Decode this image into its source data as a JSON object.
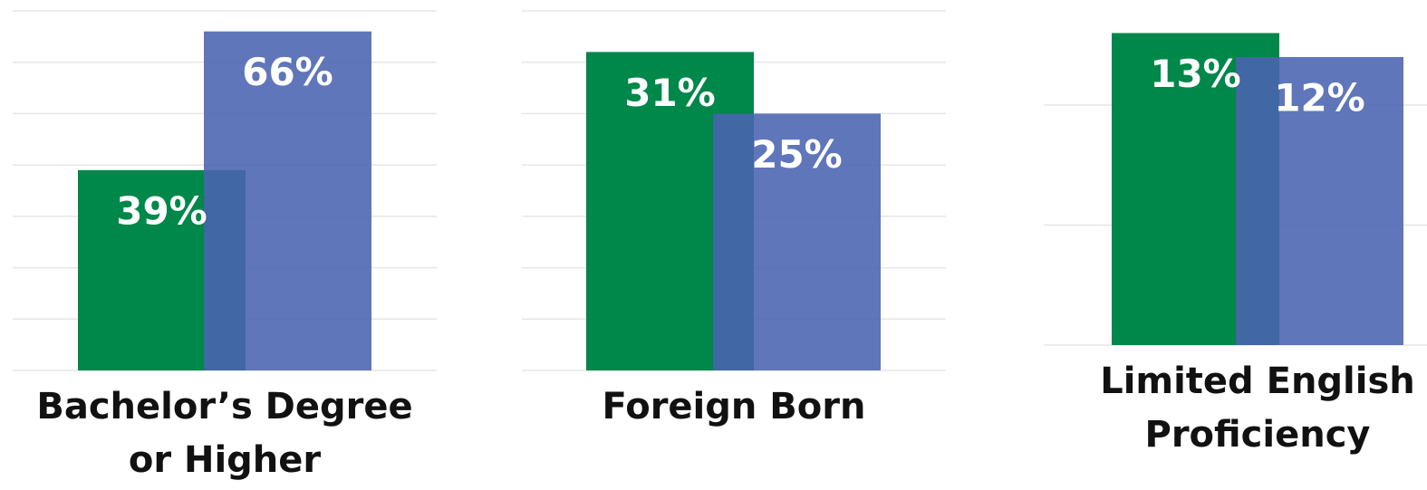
{
  "chart_data": [
    {
      "type": "bar",
      "categories": [
        "Bachelor’s Degree or Higher"
      ],
      "series": [
        {
          "color": "#00874a",
          "values": [
            39
          ],
          "value_labels": [
            "39%"
          ]
        },
        {
          "color": "#4a63b0",
          "values": [
            66
          ],
          "value_labels": [
            "66%"
          ]
        }
      ],
      "ylim": [
        0,
        70
      ],
      "yticks": [
        0,
        10,
        20,
        30,
        40,
        50,
        60,
        70
      ],
      "grid": true
    },
    {
      "type": "bar",
      "categories": [
        "Foreign Born"
      ],
      "series": [
        {
          "color": "#00874a",
          "values": [
            31
          ],
          "value_labels": [
            "31%"
          ]
        },
        {
          "color": "#4a63b0",
          "values": [
            25
          ],
          "value_labels": [
            "25%"
          ]
        }
      ],
      "ylim": [
        0,
        35
      ],
      "yticks": [
        0,
        5,
        10,
        15,
        20,
        25,
        30,
        35
      ],
      "grid": true
    },
    {
      "type": "bar",
      "categories": [
        "Limited English Proficiency"
      ],
      "series": [
        {
          "color": "#00874a",
          "values": [
            13
          ],
          "value_labels": [
            "13%"
          ]
        },
        {
          "color": "#4a63b0",
          "values": [
            12
          ],
          "value_labels": [
            "12%"
          ]
        }
      ],
      "ylim": [
        0,
        14
      ],
      "yticks": [
        0,
        5,
        10
      ],
      "grid": true
    }
  ]
}
